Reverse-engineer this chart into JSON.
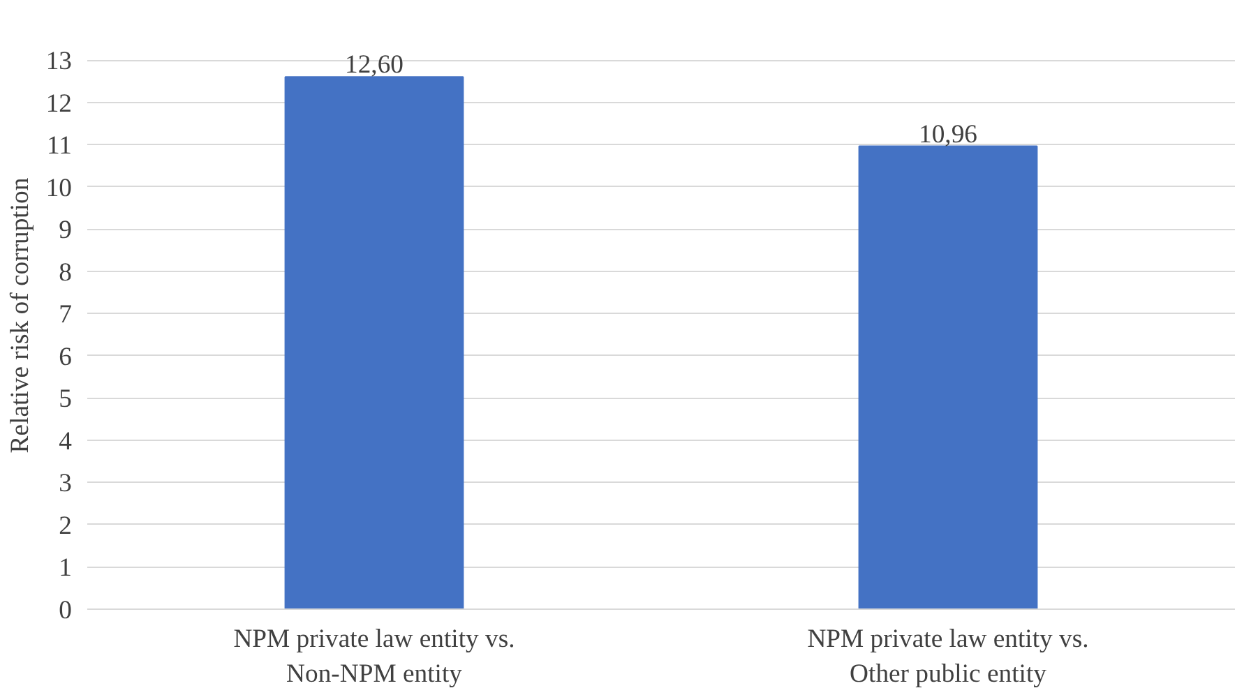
{
  "chart_data": {
    "type": "bar",
    "ylabel": "Relative risk of corruption",
    "categories": [
      "NPM private law entity vs. Non-NPM entity",
      "NPM private law entity vs. Other public entity"
    ],
    "values": [
      12.6,
      10.96
    ],
    "value_labels": [
      "12,60",
      "10,96"
    ],
    "color": "#4472c4",
    "ylim": [
      0,
      13
    ],
    "yticks": [
      0,
      1,
      2,
      3,
      4,
      5,
      6,
      7,
      8,
      9,
      10,
      11,
      12,
      13
    ],
    "grid": "y"
  }
}
